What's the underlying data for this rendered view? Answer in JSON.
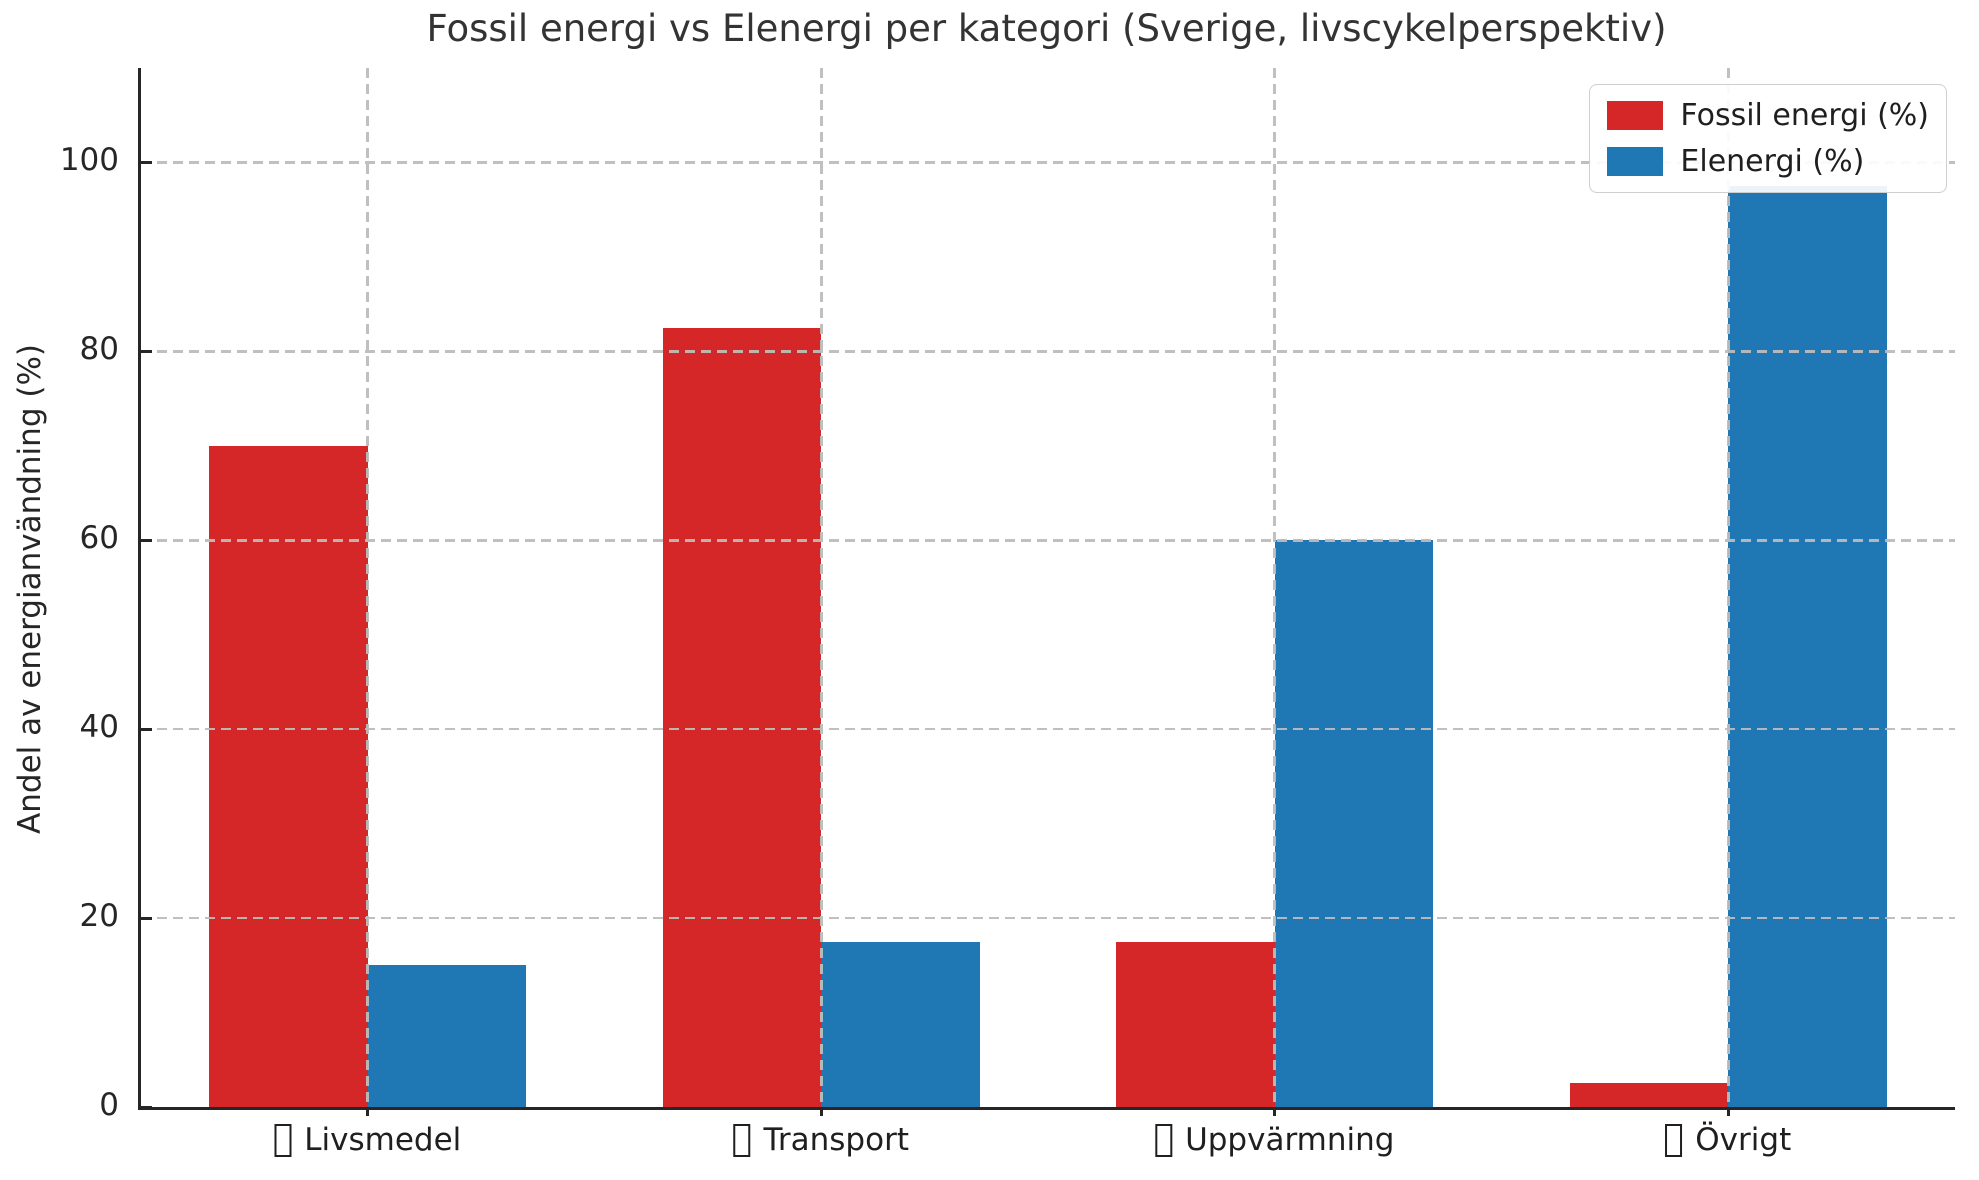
{
  "chart_data": {
    "type": "bar",
    "title": "Fossil energi vs Elenergi per kategori (Sverige, livscykelperspektiv)",
    "ylabel": "Andel av energianvändning (%)",
    "xlabel": "",
    "categories": [
      "Livsmedel",
      "Transport",
      "Uppvärmning",
      "Övrigt"
    ],
    "category_label_prefix": "missing-emoji tofu box glyph before each category name",
    "series": [
      {
        "name": "Fossil energi (%)",
        "color": "#d62728",
        "values": [
          70,
          82.5,
          17.5,
          2.5
        ]
      },
      {
        "name": "Elenergi (%)",
        "color": "#1f77b4",
        "values": [
          15,
          17.5,
          60,
          97.5
        ]
      }
    ],
    "yticks": [
      0,
      20,
      40,
      60,
      80,
      100
    ],
    "ylim": [
      0,
      110
    ],
    "bar_width_fraction": 0.35,
    "grid": {
      "horizontal_at_yticks": true,
      "vertical_at_category_centers": true,
      "style": "dashed",
      "color": "#bcbcbc",
      "drawn_above_bars": true
    },
    "legend": {
      "position": "upper-right",
      "labels": [
        "Fossil energi (%)",
        "Elenergi (%)"
      ]
    },
    "background": "#ffffff",
    "text_color": "#262626"
  }
}
